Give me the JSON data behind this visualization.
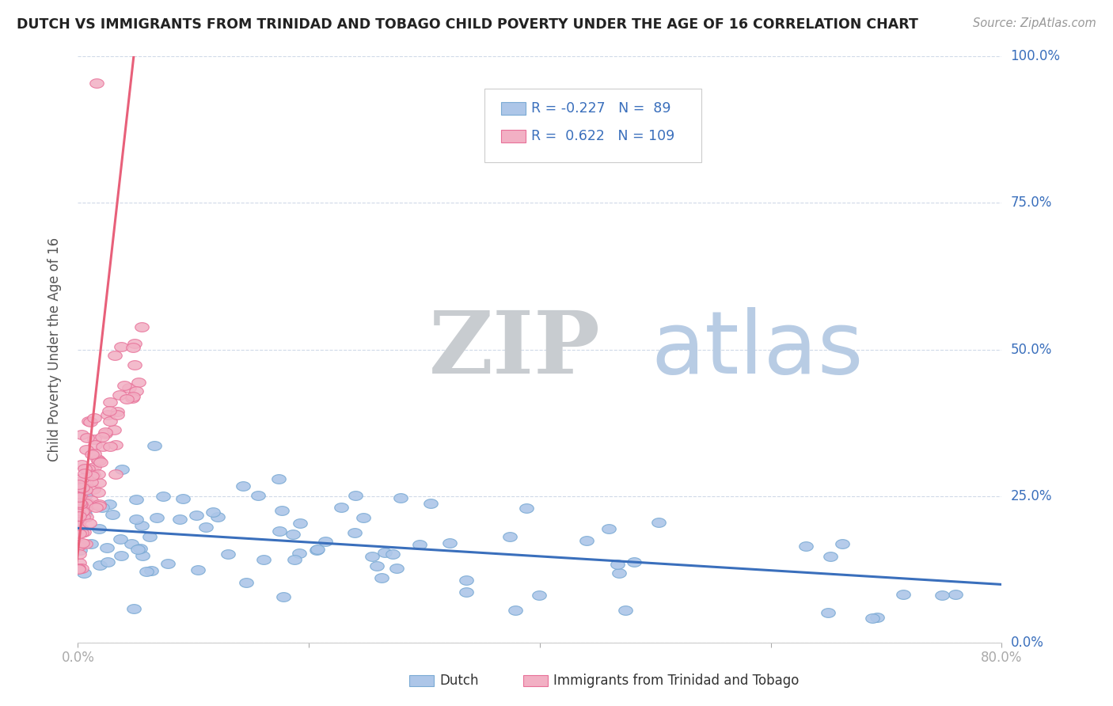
{
  "title": "DUTCH VS IMMIGRANTS FROM TRINIDAD AND TOBAGO CHILD POVERTY UNDER THE AGE OF 16 CORRELATION CHART",
  "source": "Source: ZipAtlas.com",
  "ylabel": "Child Poverty Under the Age of 16",
  "xlim": [
    0,
    0.8
  ],
  "ylim": [
    0,
    1.0
  ],
  "dutch_color": "#adc6e8",
  "dutch_edge_color": "#7aaad4",
  "dutch_line_color": "#3a6fbc",
  "immigrant_color": "#f2b0c4",
  "immigrant_edge_color": "#e87098",
  "immigrant_line_color": "#e8607a",
  "legend_dutch_R": "-0.227",
  "legend_dutch_N": "89",
  "legend_immigrant_R": "0.622",
  "legend_immigrant_N": "109",
  "watermark_ZIP": "ZIP",
  "watermark_atlas": "atlas",
  "watermark_color_ZIP": "#c8ccd0",
  "watermark_color_atlas": "#b8cce4",
  "background_color": "#ffffff",
  "grid_color": "#d0dae8",
  "axis_color": "#3a6fbc",
  "title_color": "#222222",
  "source_color": "#999999",
  "ylabel_color": "#555555"
}
